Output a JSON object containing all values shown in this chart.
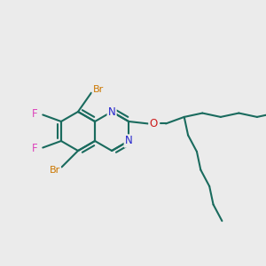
{
  "bg_color": "#ebebeb",
  "bond_color": "#1a6b5e",
  "bond_lw": 1.5,
  "N_color": "#2525cc",
  "O_color": "#cc1a1a",
  "Br_color": "#cc7700",
  "F_color": "#dd44bb",
  "figsize": [
    3.0,
    3.0
  ],
  "dpi": 100,
  "xlim": [
    0,
    300
  ],
  "ylim": [
    0,
    300
  ]
}
